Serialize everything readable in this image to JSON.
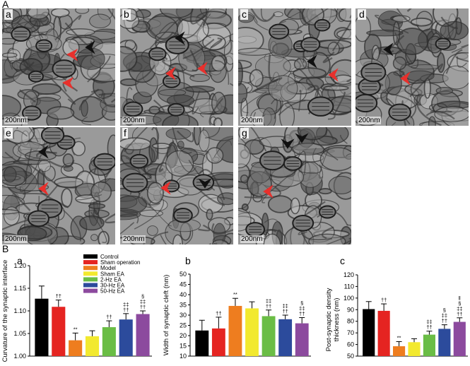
{
  "figure": {
    "panel_a_letter": "A",
    "panel_b_letter": "B",
    "em_tiles": [
      {
        "letter": "a",
        "scale": "200nm"
      },
      {
        "letter": "b",
        "scale": "200nm"
      },
      {
        "letter": "c",
        "scale": "200nm"
      },
      {
        "letter": "d",
        "scale": "200nm"
      },
      {
        "letter": "e",
        "scale": "200nm"
      },
      {
        "letter": "f",
        "scale": "200nm"
      },
      {
        "letter": "g",
        "scale": "200nm"
      }
    ],
    "arrow_colors": {
      "black": "#111111",
      "red": "#e8302c"
    }
  },
  "legend": [
    {
      "label": "Control",
      "color": "#000000"
    },
    {
      "label": "Sham operation",
      "color": "#e52421"
    },
    {
      "label": "Model",
      "color": "#ee7d1f"
    },
    {
      "label": "Sham EA",
      "color": "#f2e92f"
    },
    {
      "label": "2-Hz EA",
      "color": "#6abd45"
    },
    {
      "label": "30-Hz EA",
      "color": "#2c4b9c"
    },
    {
      "label": "50-Hz EA",
      "color": "#8c4a9e"
    }
  ],
  "chart_data": [
    {
      "letter": "a",
      "type": "bar",
      "ylabel": "Curvature of the synaptic interface",
      "ylim": [
        1.0,
        1.2
      ],
      "ticks": [
        "1.00",
        "1.05",
        "1.10",
        "1.15",
        "1.20"
      ],
      "categories": [
        "Control",
        "Sham operation",
        "Model",
        "Sham EA",
        "2-Hz EA",
        "30-Hz EA",
        "50-Hz EA"
      ],
      "values": [
        1.127,
        1.109,
        1.035,
        1.044,
        1.064,
        1.081,
        1.093
      ],
      "errors": [
        0.028,
        0.015,
        0.016,
        0.012,
        0.014,
        0.013,
        0.007
      ],
      "annotations": [
        [],
        [
          "††"
        ],
        [
          "**"
        ],
        [],
        [
          "††"
        ],
        [
          "‡‡",
          "††"
        ],
        [
          "§",
          "‡‡",
          "††"
        ]
      ]
    },
    {
      "letter": "b",
      "type": "bar",
      "ylabel": "Width of synaptic cleft (nm)",
      "ylim": [
        10,
        50
      ],
      "ticks": [
        "10",
        "15",
        "20",
        "25",
        "30",
        "35",
        "40",
        "45",
        "50"
      ],
      "categories": [
        "Control",
        "Sham operation",
        "Model",
        "Sham EA",
        "2-Hz EA",
        "30-Hz EA",
        "50-Hz EA"
      ],
      "values": [
        22.5,
        23.5,
        34.5,
        33.3,
        29.5,
        28.0,
        26.0
      ],
      "errors": [
        5.0,
        5.5,
        3.7,
        3.2,
        3.0,
        2.0,
        2.8
      ],
      "annotations": [
        [],
        [
          "††"
        ],
        [
          "**"
        ],
        [],
        [
          "‡‡",
          "††"
        ],
        [
          "‡‡",
          "††"
        ],
        [
          "§",
          "‡‡",
          "††"
        ]
      ]
    },
    {
      "letter": "c",
      "type": "bar",
      "ylabel": "Post-synaptic density thickness (nm)",
      "ylim": [
        50,
        120
      ],
      "ticks": [
        "50",
        "60",
        "70",
        "80",
        "90",
        "100",
        "110",
        "120"
      ],
      "categories": [
        "Control",
        "Sham operation",
        "Model",
        "Sham EA",
        "2-Hz EA",
        "30-Hz EA",
        "50-Hz EA"
      ],
      "values": [
        90.5,
        89.0,
        58.5,
        62.0,
        68.5,
        73.5,
        79.5
      ],
      "errors": [
        6.5,
        6.0,
        4.0,
        3.0,
        3.0,
        3.5,
        3.5
      ],
      "annotations": [
        [],
        [
          "††"
        ],
        [
          "**"
        ],
        [],
        [
          "‡‡",
          "††"
        ],
        [
          "§",
          "‡‡",
          "††"
        ],
        [
          "‖",
          "§",
          "‡‡",
          "††"
        ]
      ]
    }
  ]
}
